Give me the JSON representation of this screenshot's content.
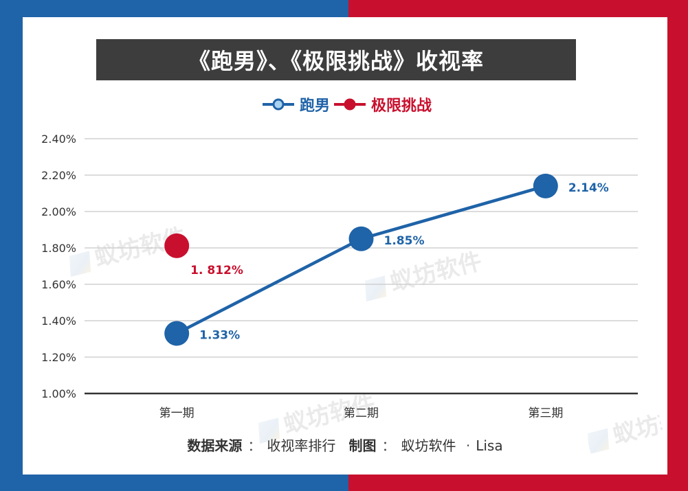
{
  "title": "《跑男》、《极限挑战》收视率",
  "legend": [
    {
      "label": "跑男",
      "color": "#1f63a8",
      "marker_fill": "#a9d3ef"
    },
    {
      "label": "极限挑战",
      "color": "#c8102e",
      "marker_fill": "#c8102e"
    }
  ],
  "chart_data": {
    "type": "line",
    "title": "《跑男》、《极限挑战》收视率",
    "categories": [
      "第一期",
      "第二期",
      "第三期"
    ],
    "ylim": [
      1.0,
      2.4
    ],
    "yticks": [
      "1.00%",
      "1.20%",
      "1.40%",
      "1.60%",
      "1.80%",
      "2.00%",
      "2.20%",
      "2.40%"
    ],
    "grid": true,
    "legend_position": "top-center",
    "series": [
      {
        "name": "跑男",
        "color": "#1f63a8",
        "values": [
          1.33,
          1.85,
          2.14
        ],
        "labels": [
          "1.33%",
          "1.85%",
          "2.14%"
        ]
      },
      {
        "name": "极限挑战",
        "color": "#c8102e",
        "values": [
          1.812,
          null,
          null
        ],
        "labels": [
          "1. 812%",
          "",
          ""
        ]
      }
    ]
  },
  "source": {
    "data_label": "数据来源",
    "data_value": "收视率排行",
    "chart_label": "制图",
    "chart_value": "蚁坊软件",
    "author": "Lisa",
    "colon": "：",
    "dot": "·"
  },
  "watermark_text": "蚁坊软件"
}
